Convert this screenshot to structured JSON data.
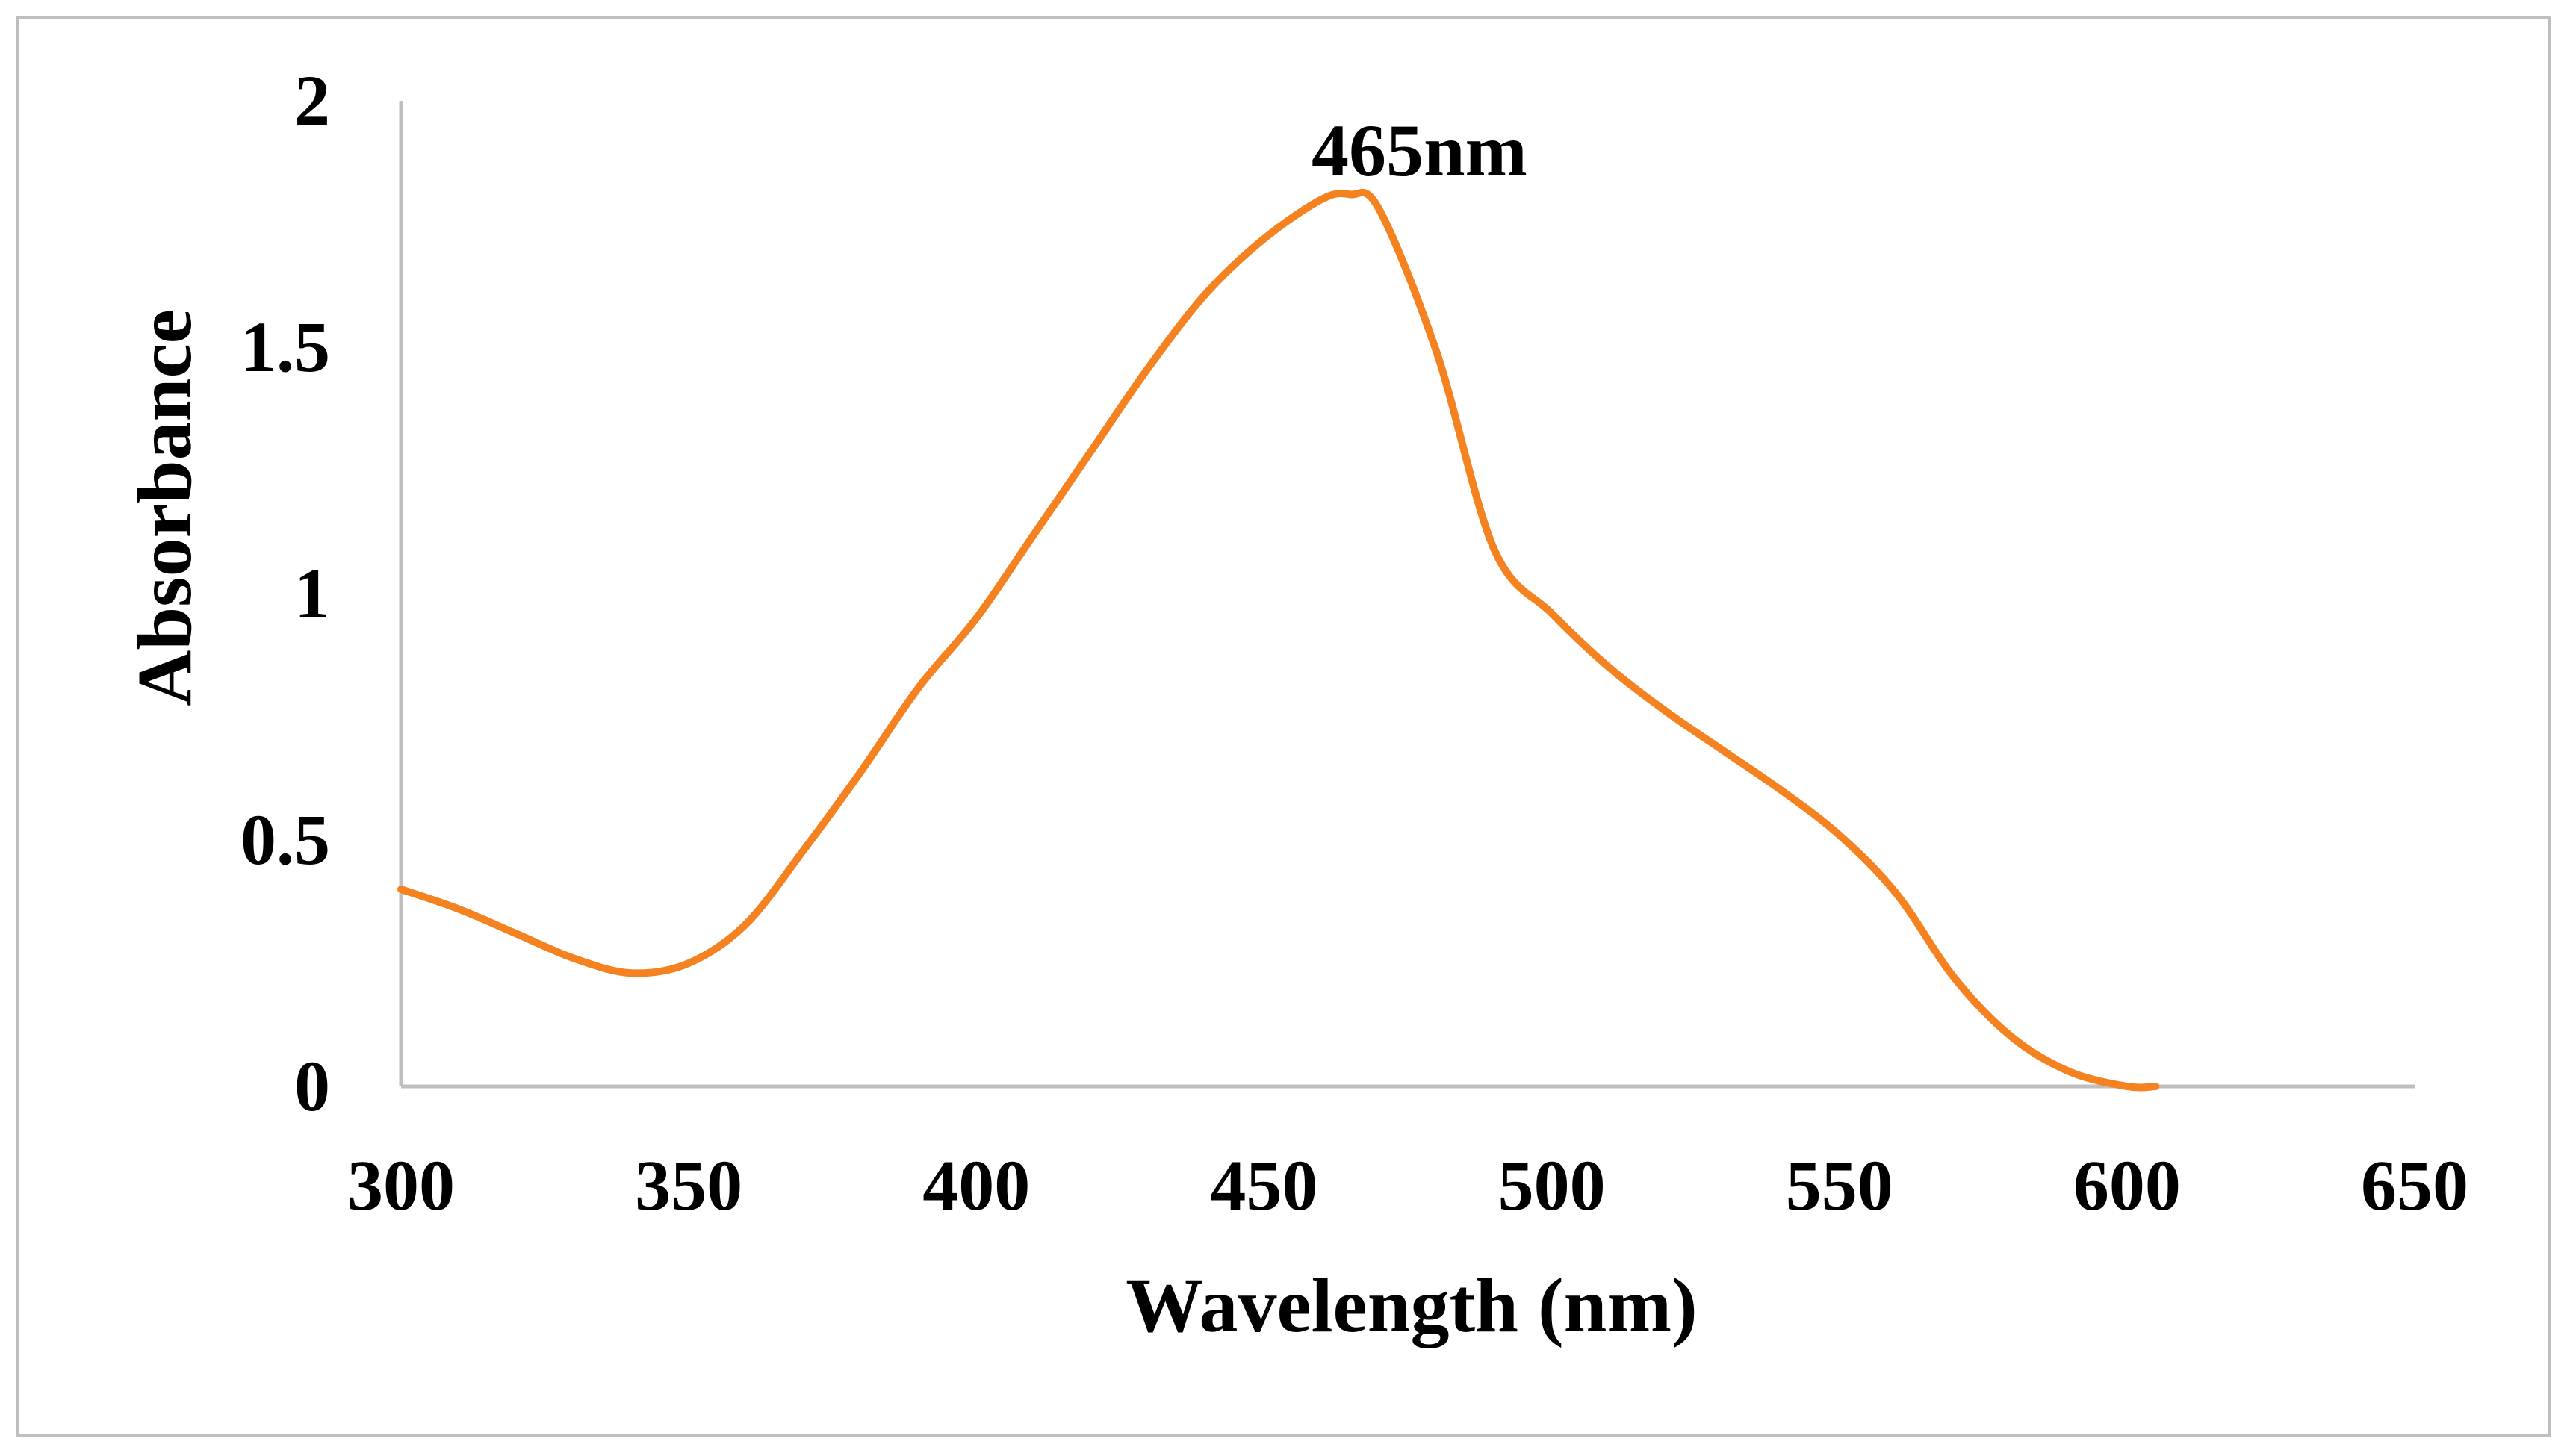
{
  "chart_data": {
    "type": "line",
    "title": "",
    "xlabel": "Wavelength (nm)",
    "ylabel": "Absorbance",
    "xlim": [
      300,
      650
    ],
    "ylim": [
      0,
      2
    ],
    "xticks": [
      300,
      350,
      400,
      450,
      500,
      550,
      600,
      650
    ],
    "yticks": [
      0,
      0.5,
      1,
      1.5,
      2
    ],
    "xtick_labels": [
      "300",
      "350",
      "400",
      "450",
      "500",
      "550",
      "600",
      "650"
    ],
    "ytick_labels": [
      "0",
      "0.5",
      "1",
      "1.5",
      "2"
    ],
    "grid": false,
    "legend": "none",
    "annotations": [
      {
        "text": "465nm",
        "x": 477,
        "y": 1.9
      }
    ],
    "series": [
      {
        "name": "Absorbance",
        "color": "#f58220",
        "x": [
          300,
          310,
          320,
          330,
          340,
          350,
          360,
          370,
          380,
          390,
          400,
          410,
          420,
          430,
          440,
          450,
          460,
          465,
          470,
          480,
          490,
          500,
          510,
          520,
          530,
          540,
          550,
          560,
          570,
          580,
          590,
          600,
          605
        ],
        "values": [
          0.4,
          0.36,
          0.31,
          0.26,
          0.23,
          0.25,
          0.33,
          0.48,
          0.64,
          0.81,
          0.95,
          1.12,
          1.29,
          1.46,
          1.61,
          1.72,
          1.8,
          1.81,
          1.78,
          1.49,
          1.09,
          0.96,
          0.85,
          0.76,
          0.68,
          0.6,
          0.51,
          0.39,
          0.22,
          0.1,
          0.03,
          0.0,
          0.0
        ]
      }
    ]
  }
}
